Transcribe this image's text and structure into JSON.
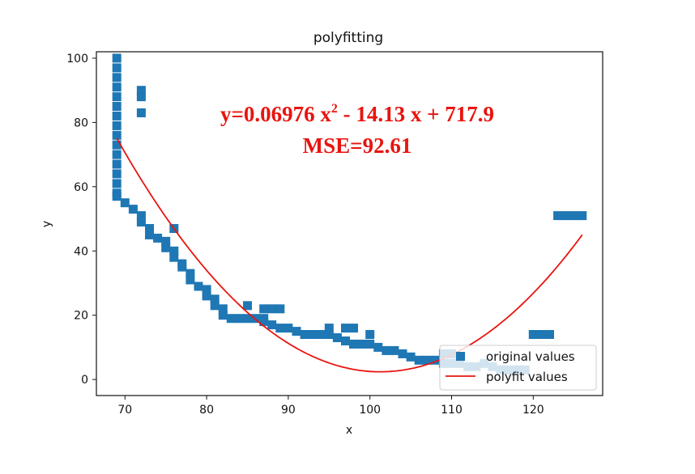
{
  "chart_data": {
    "type": "scatter",
    "title": "polyfitting",
    "xlabel": "x",
    "ylabel": "y",
    "xlim": [
      66.5,
      128.5
    ],
    "ylim": [
      -5,
      102
    ],
    "xticks": [
      "70",
      "80",
      "90",
      "100",
      "110",
      "120"
    ],
    "yticks": [
      "0",
      "20",
      "40",
      "60",
      "80",
      "100"
    ],
    "grid": false,
    "legend_placement": "lower-right",
    "equation": {
      "line1_prefix": "y=0.06976 x",
      "line1_power": "2",
      "line1_suffix": " - 14.13 x + 717.9",
      "line2": "MSE=92.61",
      "color": "#e8140f"
    },
    "fit": {
      "a": 0.06976,
      "b": -14.13,
      "c": 717.9,
      "x_range": [
        69,
        126
      ],
      "color": "#e8140f"
    },
    "series": [
      {
        "name": "original values",
        "color": "#1f77b4",
        "points": [
          [
            69,
            100
          ],
          [
            69,
            97
          ],
          [
            69,
            94
          ],
          [
            69,
            91
          ],
          [
            69,
            88
          ],
          [
            69,
            85
          ],
          [
            69,
            82
          ],
          [
            69,
            79
          ],
          [
            69,
            76
          ],
          [
            69,
            73
          ],
          [
            69,
            70
          ],
          [
            69,
            67
          ],
          [
            69,
            64
          ],
          [
            69,
            61
          ],
          [
            69,
            58
          ],
          [
            69,
            57
          ],
          [
            72,
            90
          ],
          [
            72,
            88
          ],
          [
            72,
            83
          ],
          [
            70,
            55
          ],
          [
            71,
            53
          ],
          [
            72,
            51
          ],
          [
            72,
            49
          ],
          [
            73,
            47
          ],
          [
            73,
            45
          ],
          [
            74,
            44
          ],
          [
            75,
            43
          ],
          [
            75,
            41
          ],
          [
            76,
            47
          ],
          [
            76,
            40
          ],
          [
            76,
            38
          ],
          [
            77,
            36
          ],
          [
            77,
            35
          ],
          [
            78,
            33
          ],
          [
            78,
            31
          ],
          [
            79,
            29
          ],
          [
            80,
            28
          ],
          [
            80,
            26
          ],
          [
            81,
            25
          ],
          [
            81,
            23
          ],
          [
            82,
            22
          ],
          [
            82,
            20
          ],
          [
            83,
            19
          ],
          [
            84,
            19
          ],
          [
            85,
            19
          ],
          [
            86,
            19
          ],
          [
            87,
            19
          ],
          [
            85,
            23
          ],
          [
            87,
            22
          ],
          [
            88,
            22
          ],
          [
            89,
            22
          ],
          [
            87,
            18
          ],
          [
            88,
            17
          ],
          [
            89,
            16
          ],
          [
            90,
            16
          ],
          [
            91,
            15
          ],
          [
            92,
            14
          ],
          [
            93,
            14
          ],
          [
            94,
            14
          ],
          [
            95,
            14
          ],
          [
            95,
            16
          ],
          [
            96,
            13
          ],
          [
            97,
            12
          ],
          [
            97,
            16
          ],
          [
            98,
            16
          ],
          [
            98,
            11
          ],
          [
            99,
            11
          ],
          [
            100,
            11
          ],
          [
            100,
            14
          ],
          [
            101,
            10
          ],
          [
            102,
            9
          ],
          [
            103,
            9
          ],
          [
            104,
            8
          ],
          [
            105,
            7
          ],
          [
            106,
            6
          ],
          [
            107,
            6
          ],
          [
            108,
            6
          ],
          [
            109,
            5
          ],
          [
            109,
            8
          ],
          [
            110,
            8
          ],
          [
            110,
            5
          ],
          [
            111,
            5
          ],
          [
            112,
            4
          ],
          [
            113,
            4
          ],
          [
            114,
            5
          ],
          [
            115,
            4
          ],
          [
            116,
            3
          ],
          [
            117,
            3
          ],
          [
            118,
            3
          ],
          [
            119,
            3
          ],
          [
            120,
            14
          ],
          [
            121,
            14
          ],
          [
            122,
            14
          ],
          [
            123,
            51
          ],
          [
            124,
            51
          ],
          [
            125,
            51
          ],
          [
            126,
            51
          ]
        ]
      },
      {
        "name": "polyfit values",
        "color": "#e8140f"
      }
    ]
  }
}
